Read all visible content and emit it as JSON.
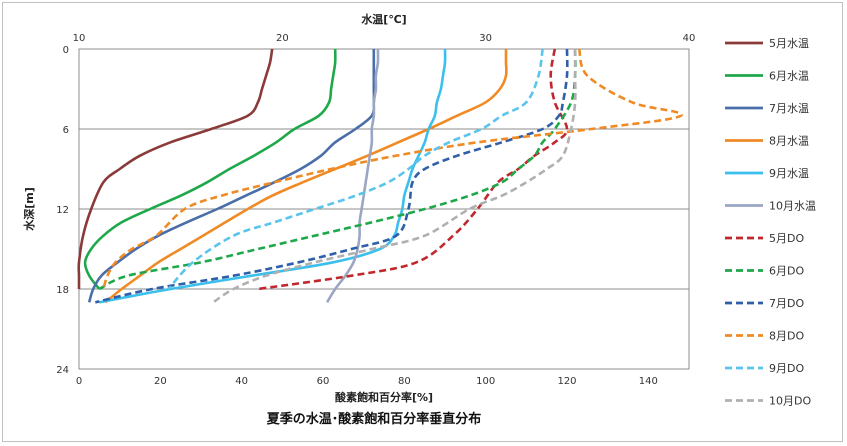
{
  "chart_data": {
    "type": "line",
    "title": "夏季の水温･酸素飽和百分率垂直分布",
    "top_axis": {
      "label": "水温[℃]",
      "range": [
        10,
        40
      ],
      "ticks": [
        10,
        20,
        30,
        40
      ]
    },
    "bottom_axis": {
      "label": "酸素飽和百分率[%]",
      "range": [
        0,
        150
      ],
      "ticks": [
        0,
        20,
        40,
        60,
        80,
        100,
        120,
        140
      ]
    },
    "y_axis": {
      "label": "水深[m]",
      "range": [
        0,
        24
      ],
      "reversed": true,
      "ticks": [
        0,
        6,
        12,
        18,
        24
      ]
    },
    "grid": true,
    "legend_position": "right",
    "series": [
      {
        "name": "5月水温",
        "axis": "top",
        "dash": false,
        "color": "#8b3a3a",
        "points": [
          [
            19.5,
            0
          ],
          [
            19.4,
            1
          ],
          [
            19.2,
            2
          ],
          [
            19.0,
            3
          ],
          [
            18.8,
            4
          ],
          [
            18.3,
            5
          ],
          [
            16.5,
            6
          ],
          [
            14.5,
            7
          ],
          [
            13.0,
            8
          ],
          [
            12.0,
            9
          ],
          [
            11.2,
            10
          ],
          [
            10.6,
            12
          ],
          [
            10.2,
            14
          ],
          [
            10.0,
            16
          ],
          [
            10.0,
            17
          ],
          [
            10.0,
            18
          ]
        ]
      },
      {
        "name": "6月水温",
        "axis": "top",
        "dash": false,
        "color": "#1fa84a",
        "points": [
          [
            22.6,
            0
          ],
          [
            22.6,
            1
          ],
          [
            22.5,
            2
          ],
          [
            22.4,
            3
          ],
          [
            22.3,
            4
          ],
          [
            21.8,
            5
          ],
          [
            20.6,
            6
          ],
          [
            19.7,
            7
          ],
          [
            18.6,
            8
          ],
          [
            17.4,
            9
          ],
          [
            16.3,
            10
          ],
          [
            15.0,
            11
          ],
          [
            13.5,
            12
          ],
          [
            12.1,
            13
          ],
          [
            11.2,
            14
          ],
          [
            10.6,
            15
          ],
          [
            10.3,
            16
          ],
          [
            10.5,
            17
          ],
          [
            11.0,
            18
          ]
        ]
      },
      {
        "name": "7月水温",
        "axis": "top",
        "dash": false,
        "color": "#4a6ea8",
        "points": [
          [
            24.5,
            0
          ],
          [
            24.5,
            1
          ],
          [
            24.5,
            2
          ],
          [
            24.5,
            3
          ],
          [
            24.5,
            4
          ],
          [
            24.4,
            5
          ],
          [
            23.6,
            6
          ],
          [
            22.6,
            7
          ],
          [
            21.9,
            8
          ],
          [
            20.9,
            9
          ],
          [
            19.6,
            10
          ],
          [
            18.2,
            11
          ],
          [
            16.8,
            12
          ],
          [
            15.3,
            13
          ],
          [
            13.9,
            14
          ],
          [
            12.8,
            15
          ],
          [
            11.9,
            16
          ],
          [
            11.1,
            17
          ],
          [
            10.7,
            18
          ],
          [
            10.5,
            19
          ]
        ]
      },
      {
        "name": "8月水温",
        "axis": "top",
        "dash": false,
        "color": "#f08a24",
        "points": [
          [
            31.0,
            0
          ],
          [
            31.0,
            1
          ],
          [
            31.0,
            2
          ],
          [
            30.7,
            3
          ],
          [
            30.0,
            4
          ],
          [
            28.6,
            5
          ],
          [
            27.2,
            6
          ],
          [
            25.7,
            7
          ],
          [
            24.2,
            8
          ],
          [
            22.6,
            9
          ],
          [
            21.0,
            10
          ],
          [
            19.5,
            11
          ],
          [
            18.3,
            12
          ],
          [
            17.2,
            13
          ],
          [
            16.1,
            14
          ],
          [
            15.0,
            15
          ],
          [
            13.9,
            16
          ],
          [
            13.0,
            17
          ],
          [
            12.1,
            18
          ],
          [
            11.3,
            19
          ]
        ]
      },
      {
        "name": "9月水温",
        "axis": "top",
        "dash": false,
        "color": "#3bbfec",
        "points": [
          [
            28.0,
            0
          ],
          [
            28.0,
            1
          ],
          [
            27.9,
            2
          ],
          [
            27.8,
            3
          ],
          [
            27.6,
            4
          ],
          [
            27.5,
            5
          ],
          [
            27.2,
            6
          ],
          [
            27.0,
            7
          ],
          [
            26.7,
            8
          ],
          [
            26.4,
            9
          ],
          [
            26.2,
            10
          ],
          [
            26.0,
            11
          ],
          [
            25.9,
            12
          ],
          [
            25.7,
            13
          ],
          [
            25.5,
            14
          ],
          [
            24.8,
            15
          ],
          [
            22.5,
            16
          ],
          [
            18.5,
            17
          ],
          [
            14.5,
            18
          ],
          [
            11.0,
            19
          ]
        ]
      },
      {
        "name": "10月水温",
        "axis": "top",
        "dash": false,
        "color": "#9aa6c4",
        "points": [
          [
            24.7,
            0
          ],
          [
            24.7,
            1
          ],
          [
            24.6,
            2
          ],
          [
            24.6,
            3
          ],
          [
            24.5,
            4
          ],
          [
            24.5,
            5
          ],
          [
            24.4,
            6
          ],
          [
            24.4,
            7
          ],
          [
            24.3,
            8
          ],
          [
            24.2,
            9
          ],
          [
            24.1,
            10
          ],
          [
            24.0,
            11
          ],
          [
            23.9,
            12
          ],
          [
            23.8,
            13
          ],
          [
            23.8,
            14
          ],
          [
            23.7,
            15
          ],
          [
            23.5,
            16
          ],
          [
            23.1,
            17
          ],
          [
            22.6,
            18
          ],
          [
            22.2,
            19
          ]
        ]
      },
      {
        "name": "5月DO",
        "axis": "bottom",
        "dash": true,
        "color": "#c0282e",
        "points": [
          [
            117,
            0
          ],
          [
            116,
            2
          ],
          [
            117,
            4
          ],
          [
            120,
            6
          ],
          [
            117,
            7
          ],
          [
            112,
            8
          ],
          [
            108,
            9
          ],
          [
            103,
            10
          ],
          [
            98,
            12
          ],
          [
            92,
            14
          ],
          [
            83,
            16
          ],
          [
            67,
            17
          ],
          [
            44,
            18
          ]
        ]
      },
      {
        "name": "6月DO",
        "axis": "bottom",
        "dash": true,
        "color": "#1fa84a",
        "points": [
          [
            122,
            0
          ],
          [
            122,
            2
          ],
          [
            121,
            4
          ],
          [
            117,
            6
          ],
          [
            114,
            7
          ],
          [
            112,
            8
          ],
          [
            108,
            9
          ],
          [
            104,
            10
          ],
          [
            96,
            11
          ],
          [
            85,
            12
          ],
          [
            72,
            13
          ],
          [
            58,
            14
          ],
          [
            44,
            15
          ],
          [
            30,
            16
          ],
          [
            12,
            17
          ],
          [
            5,
            18
          ]
        ]
      },
      {
        "name": "7月DO",
        "axis": "bottom",
        "dash": true,
        "color": "#2e5fa8",
        "points": [
          [
            120,
            0
          ],
          [
            120,
            2
          ],
          [
            119,
            4
          ],
          [
            118,
            5
          ],
          [
            114,
            6
          ],
          [
            104,
            7
          ],
          [
            93,
            8
          ],
          [
            85,
            9
          ],
          [
            82,
            10
          ],
          [
            81,
            12
          ],
          [
            78,
            14
          ],
          [
            67,
            15
          ],
          [
            54,
            16
          ],
          [
            38,
            17
          ],
          [
            18,
            18
          ],
          [
            4,
            19
          ]
        ]
      },
      {
        "name": "8月DO",
        "axis": "bottom",
        "dash": true,
        "color": "#f08a24",
        "points": [
          [
            123,
            0
          ],
          [
            125,
            2
          ],
          [
            136,
            4
          ],
          [
            148,
            5
          ],
          [
            126,
            6
          ],
          [
            98,
            7
          ],
          [
            78,
            8
          ],
          [
            62,
            9
          ],
          [
            48,
            10
          ],
          [
            35,
            11
          ],
          [
            26,
            12
          ],
          [
            19,
            14
          ],
          [
            13,
            15
          ],
          [
            9,
            16
          ],
          [
            7,
            17
          ],
          [
            6,
            18
          ]
        ]
      },
      {
        "name": "9月DO",
        "axis": "bottom",
        "dash": true,
        "color": "#5bc4ec",
        "points": [
          [
            114,
            0
          ],
          [
            113,
            2
          ],
          [
            110,
            4
          ],
          [
            104,
            5
          ],
          [
            99,
            6
          ],
          [
            91,
            7
          ],
          [
            85,
            8
          ],
          [
            81,
            9
          ],
          [
            76,
            10
          ],
          [
            68,
            11
          ],
          [
            58,
            12
          ],
          [
            48,
            13
          ],
          [
            38,
            14
          ],
          [
            28,
            16
          ],
          [
            22,
            18
          ]
        ]
      },
      {
        "name": "10月DO",
        "axis": "bottom",
        "dash": true,
        "color": "#b0b0b0",
        "points": [
          [
            122,
            0
          ],
          [
            122,
            2
          ],
          [
            122,
            4
          ],
          [
            121,
            6
          ],
          [
            119,
            8
          ],
          [
            115,
            9
          ],
          [
            110,
            10
          ],
          [
            104,
            11
          ],
          [
            96,
            12
          ],
          [
            85,
            14
          ],
          [
            72,
            15
          ],
          [
            58,
            16
          ],
          [
            46,
            17
          ],
          [
            38,
            18
          ],
          [
            33,
            19
          ]
        ]
      }
    ]
  }
}
